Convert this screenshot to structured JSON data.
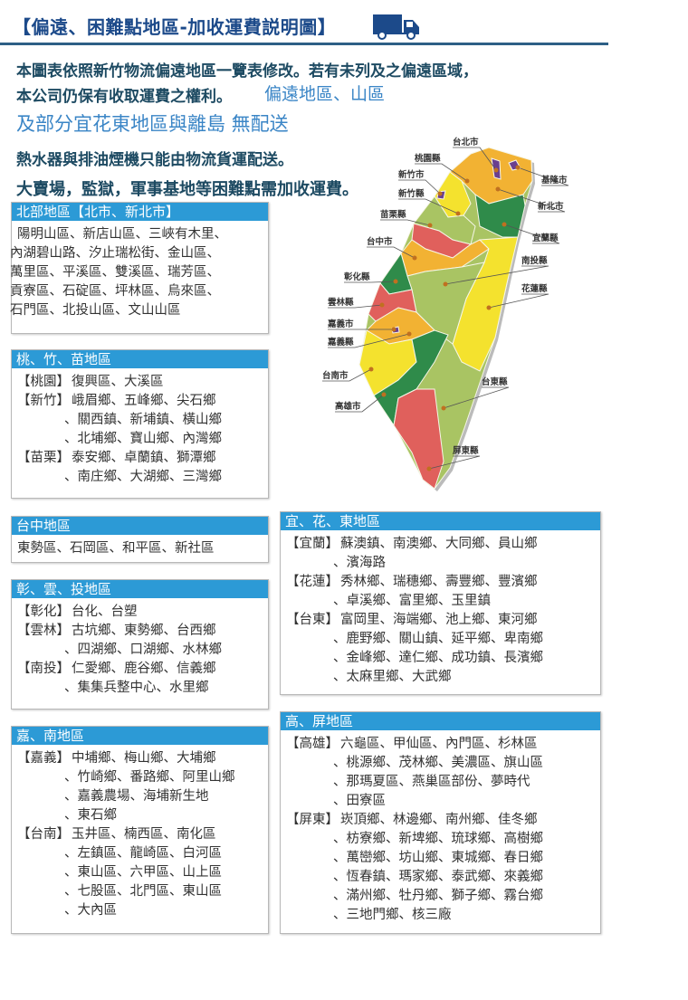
{
  "header": {
    "title": "【偏遠、困難點地區-加收運費説明圖】",
    "icon": "truck-icon",
    "colors": {
      "title": "#1c4a8a",
      "header_bar": "#2c9ad6",
      "rule": "#2d5f86"
    }
  },
  "intro": [
    "本圖表依照新竹物流偏遠地區一覽表修改。若有未列及之偏遠區域，",
    "本公司仍保有收取運費之權利。",
    "偏遠地區、山區",
    "及部分宜花東地區與離島 無配送",
    "熱水器與排油煙機只能由物流貨運配送。",
    "大賣場，監獄，軍事基地等困難點需加收運費。"
  ],
  "map": {
    "labels": [
      "台北市",
      "桃園縣",
      "新竹市",
      "新竹縣",
      "苗栗縣",
      "台中市",
      "彰化縣",
      "雲林縣",
      "嘉義市",
      "嘉義縣",
      "台南市",
      "高雄市",
      "基隆市",
      "新北市",
      "宜蘭縣",
      "南投縣",
      "花蓮縣",
      "台東縣",
      "屏東縣"
    ],
    "colors": {
      "orange": "#f2b233",
      "yellow": "#f4e22e",
      "light_green": "#a9c463",
      "dark_green": "#2f8b4a",
      "red": "#e0605c",
      "purple": "#6a3f8f"
    }
  },
  "boxes": [
    {
      "id": "north",
      "title": "北部地區【北市、新北市】",
      "noindent": true,
      "entries": [
        {
          "label": "",
          "lines": [
            "陽明山區、新店山區、三峽有木里、",
            "內湖碧山路、汐止瑞松街、金山區、",
            "萬里區、平溪區、雙溪區、瑞芳區、",
            "貢寮區、石碇區、坪林區、烏來區、",
            "石門區、北投山區、文山山區"
          ]
        }
      ]
    },
    {
      "id": "taozhumiao",
      "title": "桃、竹、苗地區",
      "entries": [
        {
          "label": "【桃園】",
          "lines": [
            "復興區、大溪區"
          ]
        },
        {
          "label": "【新竹】",
          "lines": [
            "峨眉鄉、五峰鄉、尖石鄉",
            "、關西鎮、新埔鎮、橫山鄉",
            "、北埔鄉、寶山鄉、內灣鄉"
          ]
        },
        {
          "label": "【苗栗】",
          "lines": [
            "泰安鄉、卓蘭鎮、獅潭鄉",
            "、南庄鄉、大湖鄉、三灣鄉"
          ]
        }
      ]
    },
    {
      "id": "taichung",
      "title": "台中地區",
      "noindent": true,
      "entries": [
        {
          "label": "",
          "lines": [
            "東勢區、石岡區、和平區、新社區"
          ]
        }
      ]
    },
    {
      "id": "changyuntou",
      "title": "彰、雲、投地區",
      "entries": [
        {
          "label": "【彰化】",
          "lines": [
            "台化、台塑"
          ]
        },
        {
          "label": "【雲林】",
          "lines": [
            "古坑鄉、東勢鄉、台西鄉",
            "、四湖鄉、口湖鄉、水林鄉"
          ]
        },
        {
          "label": "【南投】",
          "lines": [
            "仁愛鄉、鹿谷鄉、信義鄉",
            "、集集兵整中心、水里鄉"
          ]
        }
      ]
    },
    {
      "id": "jianan",
      "title": "嘉、南地區",
      "entries": [
        {
          "label": "【嘉義】",
          "lines": [
            "中埔鄉、梅山鄉、大埔鄉",
            "、竹崎鄉、番路鄉、阿里山鄉",
            "、嘉義農場、海埔新生地",
            "、東石鄉"
          ]
        },
        {
          "label": "【台南】",
          "lines": [
            "玉井區、楠西區、南化區",
            "、左鎮區、龍崎區、白河區",
            "、東山區、六甲區、山上區",
            "、七股區、北門區、東山區",
            "、大內區"
          ]
        }
      ]
    },
    {
      "id": "yihuadong",
      "title": "宜、花、東地區",
      "entries": [
        {
          "label": "【宜蘭】",
          "lines": [
            "蘇澳鎮、南澳鄉、大同鄉、員山鄉",
            "、濱海路"
          ]
        },
        {
          "label": "【花蓮】",
          "lines": [
            "秀林鄉、瑞穗鄉、壽豐鄉、豐濱鄉",
            "、卓溪鄉、富里鄉、玉里鎮"
          ]
        },
        {
          "label": "【台東】",
          "lines": [
            "富岡里、海端鄉、池上鄉、東河鄉",
            "、鹿野鄉、關山鎮、延平鄉、卑南鄉",
            "、金峰鄉、達仁鄉、成功鎮、長濱鄉",
            "、太麻里鄉、大武鄉"
          ]
        }
      ]
    },
    {
      "id": "gaoping",
      "title": "高、屏地區",
      "entries": [
        {
          "label": "【高雄】",
          "lines": [
            "六龜區、甲仙區、內門區、杉林區",
            "、桃源鄉、茂林鄉、美濃區、旗山區",
            "、那瑪夏區、燕巢區部份、夢時代",
            "、田寮區"
          ]
        },
        {
          "label": "【屏東】",
          "lines": [
            "崁頂鄉、林邊鄉、南州鄉、佳冬鄉",
            "、枋寮鄉、新埤鄉、琉球鄉、高樹鄉",
            "、萬巒鄉、坊山鄉、東城鄉、春日鄉",
            "、恆春鎮、瑪家鄉、泰武鄉、來義鄉",
            "、滿州鄉、牡丹鄉、獅子鄉、霧台鄉",
            "、三地門鄉、核三廠"
          ]
        }
      ]
    }
  ]
}
